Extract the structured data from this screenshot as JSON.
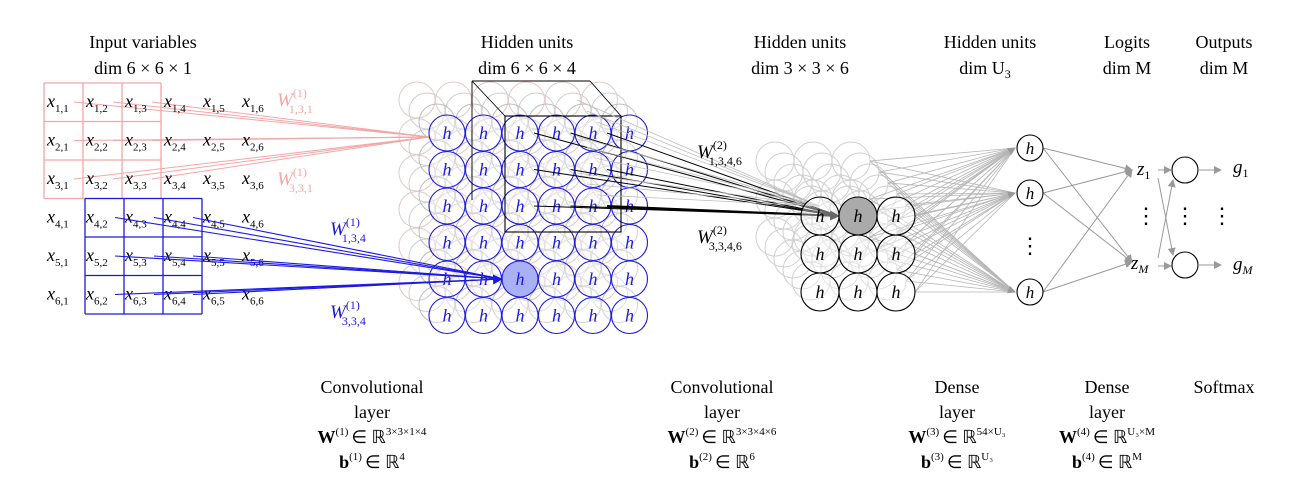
{
  "colors": {
    "pink": "#f4a6a6",
    "blue": "#1a1adf",
    "black": "#000000",
    "gray": "#aaaaaa",
    "fill_blue": "#aab0f4",
    "fill_gray": "#aaaaaa"
  },
  "headers": {
    "input": {
      "line1": "Input variables",
      "line2": "dim 6 × 6 × 1"
    },
    "hidden1": {
      "line1": "Hidden units",
      "line2": "dim 6 × 6 × 4"
    },
    "hidden2": {
      "line1": "Hidden units",
      "line2": "dim 3 × 3 × 6"
    },
    "hidden3": {
      "line1": "Hidden units",
      "line2": "dim U",
      "line2_sub": "3"
    },
    "logits": {
      "line1": "Logits",
      "line2": "dim M"
    },
    "outputs": {
      "line1": "Outputs",
      "line2": "dim M"
    }
  },
  "input_grid": {
    "rows": [
      [
        "x1,1",
        "x1,2",
        "x1,3",
        "x1,4",
        "x1,5",
        "x1,6"
      ],
      [
        "x2,1",
        "x2,2",
        "x2,3",
        "x2,4",
        "x2,5",
        "x2,6"
      ],
      [
        "x3,1",
        "x3,2",
        "x3,3",
        "x3,4",
        "x3,5",
        "x3,6"
      ],
      [
        "x4,1",
        "x4,2",
        "x4,3",
        "x4,4",
        "x4,5",
        "x4,6"
      ],
      [
        "x5,1",
        "x5,2",
        "x5,3",
        "x5,4",
        "x5,5",
        "x5,6"
      ],
      [
        "x6,1",
        "x6,2",
        "x6,3",
        "x6,4",
        "x6,5",
        "x6,6"
      ]
    ]
  },
  "hidden_unit_symbol": "h",
  "weight_labels": {
    "w1_131": {
      "base": "W",
      "sup": "(1)",
      "sub": "1,3,1"
    },
    "w1_331": {
      "base": "W",
      "sup": "(1)",
      "sub": "3,3,1"
    },
    "w1_134": {
      "base": "W",
      "sup": "(1)",
      "sub": "1,3,4"
    },
    "w1_334": {
      "base": "W",
      "sup": "(1)",
      "sub": "3,3,4"
    },
    "w2_1346": {
      "base": "W",
      "sup": "(2)",
      "sub": "1,3,4,6"
    },
    "w2_3346": {
      "base": "W",
      "sup": "(2)",
      "sub": "3,3,4,6"
    }
  },
  "logits": {
    "z1": {
      "base": "z",
      "sub": "1"
    },
    "zM": {
      "base": "z",
      "sub": "M"
    }
  },
  "outputs": {
    "g1": {
      "base": "g",
      "sub": "1"
    },
    "gM": {
      "base": "g",
      "sub": "M"
    }
  },
  "ellipsis": "⋮",
  "captions": {
    "conv1": {
      "line1": "Convolutional",
      "line2": "layer",
      "w": "W",
      "w_sup": "(1)",
      "w_rel": "∈ ℝ",
      "w_dims": "3×3×1×4",
      "b": "b",
      "b_sup": "(1)",
      "b_rel": "∈ ℝ",
      "b_dims": "4"
    },
    "conv2": {
      "line1": "Convolutional",
      "line2": "layer",
      "w": "W",
      "w_sup": "(2)",
      "w_rel": "∈ ℝ",
      "w_dims": "3×3×4×6",
      "b": "b",
      "b_sup": "(2)",
      "b_rel": "∈ ℝ",
      "b_dims": "6"
    },
    "dense3": {
      "line1": "Dense",
      "line2": "layer",
      "w": "W",
      "w_sup": "(3)",
      "w_rel": "∈ ℝ",
      "w_dims": "54×U₃",
      "b": "b",
      "b_sup": "(3)",
      "b_rel": "∈ ℝ",
      "b_dims": "U₃"
    },
    "dense4": {
      "line1": "Dense",
      "line2": "layer",
      "w": "W",
      "w_sup": "(4)",
      "w_rel": "∈ ℝ",
      "w_dims": "U₃×M",
      "b": "b",
      "b_sup": "(4)",
      "b_rel": "∈ ℝ",
      "b_dims": "M"
    },
    "softmax": {
      "line1": "Softmax"
    }
  }
}
